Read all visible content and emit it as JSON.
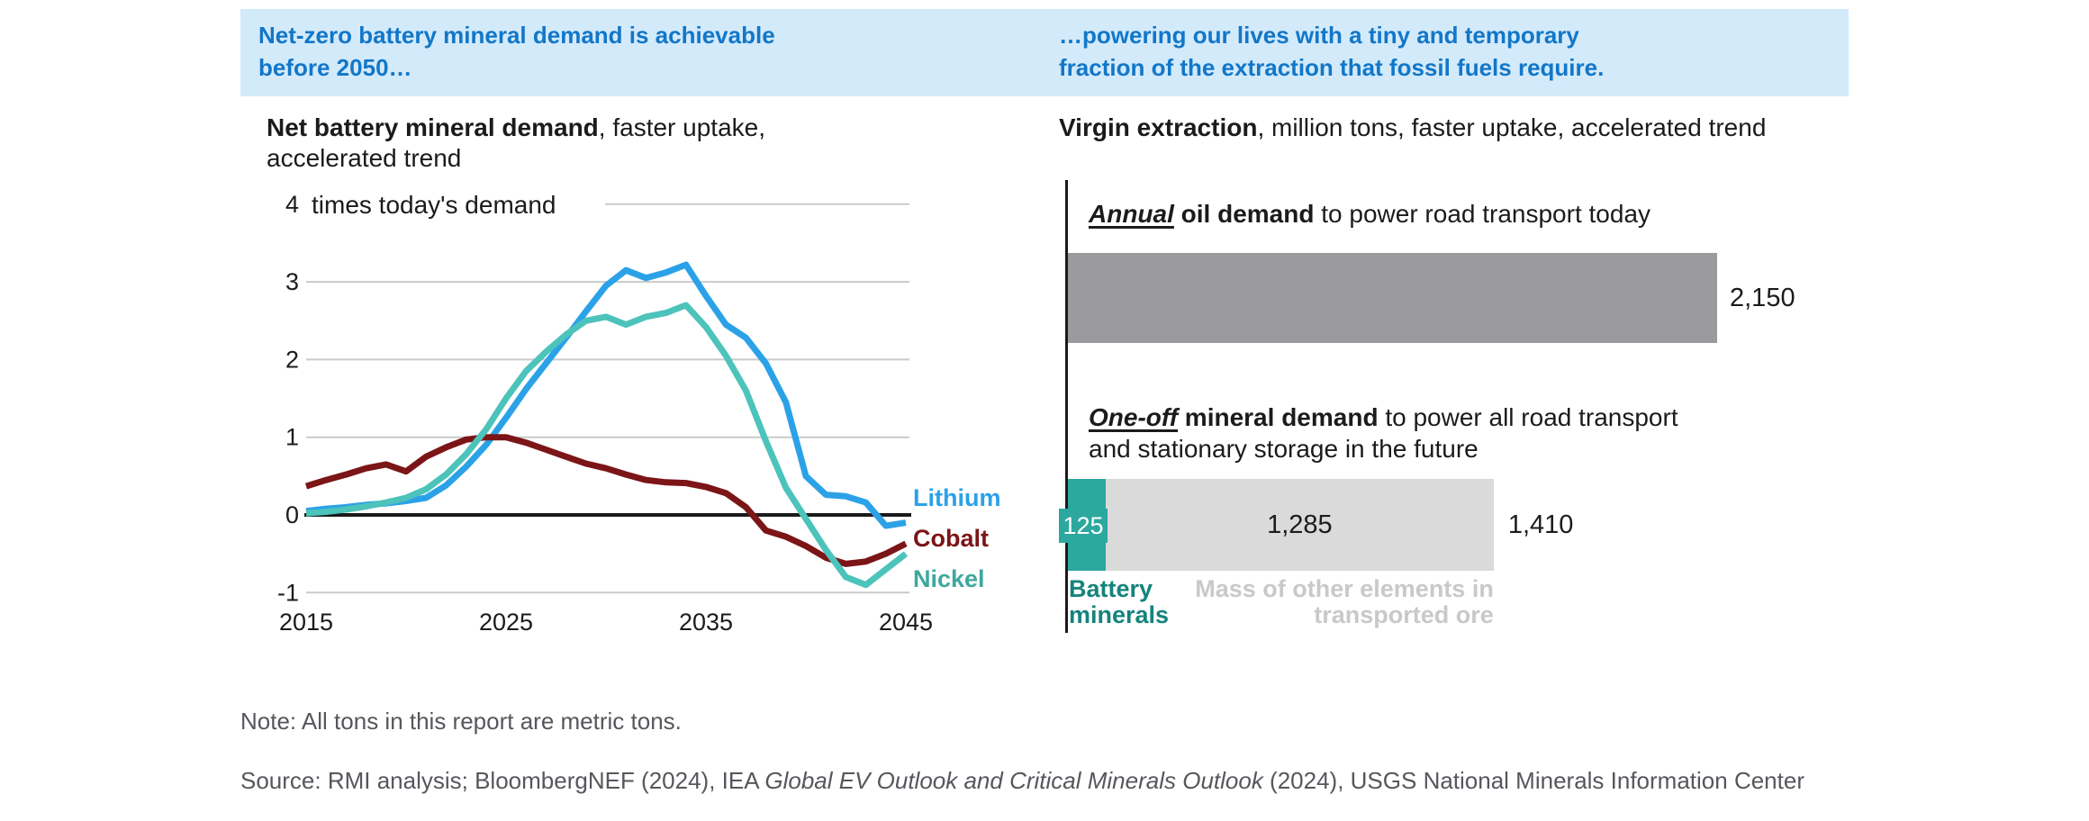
{
  "header_band": {
    "bg_color": "#d3eafb",
    "text_color": "#1277c8",
    "left_title_line1": "Net-zero battery mineral demand is achievable",
    "left_title_line2": "before 2050…",
    "right_title_line1": "…powering our lives with a tiny and temporary",
    "right_title_line2": "fraction of the extraction that fossil fuels require."
  },
  "left_panel": {
    "subtitle_bold": "Net battery mineral demand",
    "subtitle_rest_line1": ", faster uptake,",
    "subtitle_line2": "accelerated trend"
  },
  "right_panel": {
    "subtitle_bold": "Virgin extraction",
    "subtitle_rest": ", million tons, faster uptake, accelerated trend"
  },
  "notes": {
    "note": "Note: All tons in this report are metric tons.",
    "source_prefix": "Source: RMI analysis; BloombergNEF (2024), IEA ",
    "source_italic": "Global EV Outlook and Critical Minerals Outlook",
    "source_suffix": " (2024), USGS National Minerals Information Center"
  },
  "chart_data": [
    {
      "type": "line",
      "title": "Net battery mineral demand, faster uptake, accelerated trend",
      "unit_label": "times today's demand",
      "ylabel": "times today's demand",
      "xlabel": "",
      "ylim": [
        -1,
        4
      ],
      "y_ticks": [
        -1,
        0,
        1,
        2,
        3,
        4
      ],
      "x_ticks": [
        2015,
        2025,
        2035,
        2045
      ],
      "grid": "horizontal",
      "legend_position": "right",
      "zero_line_color": "#1a1a1a",
      "gridline_color": "#c9cacb",
      "x": [
        2015,
        2016,
        2017,
        2018,
        2019,
        2020,
        2021,
        2022,
        2023,
        2024,
        2025,
        2026,
        2027,
        2028,
        2029,
        2030,
        2031,
        2032,
        2033,
        2034,
        2035,
        2036,
        2037,
        2038,
        2039,
        2040,
        2041,
        2042,
        2043,
        2044,
        2045
      ],
      "series": [
        {
          "name": "Lithium",
          "color": "#2ba2e7",
          "label_color": "#2ba2e7",
          "values": [
            0.05,
            0.08,
            0.1,
            0.13,
            0.15,
            0.18,
            0.22,
            0.38,
            0.62,
            0.9,
            1.25,
            1.62,
            1.95,
            2.28,
            2.62,
            2.95,
            3.15,
            3.05,
            3.12,
            3.22,
            2.82,
            2.45,
            2.28,
            1.95,
            1.45,
            0.5,
            0.26,
            0.24,
            0.16,
            -0.14,
            -0.1
          ]
        },
        {
          "name": "Cobalt",
          "color": "#7b1517",
          "label_color": "#7b1517",
          "values": [
            0.37,
            0.45,
            0.52,
            0.6,
            0.65,
            0.56,
            0.75,
            0.87,
            0.97,
            1.0,
            1.0,
            0.93,
            0.84,
            0.75,
            0.66,
            0.6,
            0.52,
            0.45,
            0.42,
            0.41,
            0.36,
            0.28,
            0.1,
            -0.2,
            -0.28,
            -0.4,
            -0.55,
            -0.63,
            -0.6,
            -0.5,
            -0.37
          ]
        },
        {
          "name": "Nickel",
          "color": "#4cc3bb",
          "label_color": "#3fa89d",
          "values": [
            0.02,
            0.04,
            0.07,
            0.11,
            0.16,
            0.22,
            0.33,
            0.52,
            0.78,
            1.1,
            1.5,
            1.85,
            2.1,
            2.32,
            2.5,
            2.55,
            2.45,
            2.55,
            2.6,
            2.7,
            2.42,
            2.05,
            1.6,
            0.95,
            0.35,
            -0.05,
            -0.45,
            -0.8,
            -0.9,
            -0.7,
            -0.5
          ]
        }
      ]
    },
    {
      "type": "bar",
      "title": "Virgin extraction, million tons, faster uptake, accelerated trend",
      "orientation": "horizontal",
      "xmax": 2150,
      "groups": [
        {
          "label_em": "Annual",
          "label_bold": " oil demand",
          "label_rest": " to power road transport today",
          "value_label": "2,150",
          "segments": [
            {
              "name": "Annual oil demand",
              "value": 2150,
              "color": "#9b9a9c"
            }
          ]
        },
        {
          "label_em": "One-off",
          "label_bold": " mineral demand",
          "label_rest_line1": " to power all road transport",
          "label_line2": "and stationary storage in the future",
          "value_label": "1,410",
          "segments": [
            {
              "name": "Battery minerals",
              "value": 125,
              "value_label": "125",
              "color": "#2ca89f",
              "legend_color": "#15837c"
            },
            {
              "name": "Mass of other elements in transported ore",
              "value": 1285,
              "value_label": "1,285",
              "color": "#dbdadb",
              "legend_color": "#c9c8ca"
            }
          ]
        }
      ]
    }
  ]
}
